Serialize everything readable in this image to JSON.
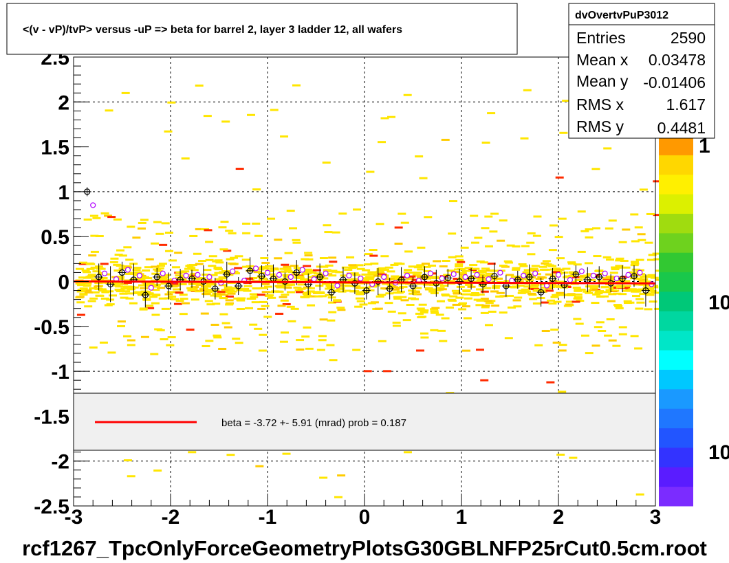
{
  "title": "<(v - vP)/tvP> versus  -uP => beta for barrel 2, layer 3 ladder 12, all wafers",
  "footer": "rcf1267_TpcOnlyForceGeometryPlotsG30GBLNFP25rCut0.5cm.root",
  "stats": {
    "name": "dvOvertvPuP3012",
    "rows": [
      {
        "label": "Entries",
        "value": "2590"
      },
      {
        "label": "Mean x",
        "value": "0.03478"
      },
      {
        "label": "Mean y",
        "value": "-0.01406"
      },
      {
        "label": "RMS x",
        "value": "1.617"
      },
      {
        "label": "RMS y",
        "value": "0.4481"
      }
    ]
  },
  "legend": {
    "text": "beta =   -3.72 +-  5.91 (mrad) prob = 0.187"
  },
  "colorbar": {
    "labels": [
      "1",
      "10",
      "10"
    ],
    "colors": [
      "#7b2cff",
      "#5a1cff",
      "#3333ff",
      "#2255ff",
      "#1f77ff",
      "#1a99ff",
      "#00c8ff",
      "#00ffff",
      "#00e6c8",
      "#00d7a0",
      "#00c878",
      "#19c84b",
      "#32c832",
      "#6ed21e",
      "#a0dc0f",
      "#dcf000",
      "#fff000",
      "#ffd700",
      "#ff9900"
    ]
  },
  "chart_data": {
    "type": "scatter",
    "title": "<(v - vP)/tvP> versus  -uP => beta for barrel 2, layer 3 ladder 12, all wafers",
    "xlabel": "",
    "ylabel": "",
    "xlim": [
      -3,
      3
    ],
    "ylim": [
      -2.5,
      2.5
    ],
    "xticks": [
      "-3",
      "-2",
      "-1",
      "0",
      "1",
      "2",
      "3"
    ],
    "yticks": [
      "-2.5",
      "-2",
      "-1.5",
      "-1",
      "-0.5",
      "0",
      "0.5",
      "1",
      "1.5",
      "2",
      "2.5"
    ],
    "grid": true,
    "fit": {
      "name": "beta",
      "beta_mrad": -3.72,
      "error_mrad": 5.91,
      "prob": 0.187,
      "y_at_x0": -0.01
    },
    "series": [
      {
        "name": "profile",
        "x": [
          -2.86,
          -2.74,
          -2.62,
          -2.5,
          -2.38,
          -2.26,
          -2.14,
          -2.02,
          -1.9,
          -1.78,
          -1.66,
          -1.54,
          -1.42,
          -1.3,
          -1.18,
          -1.06,
          -0.94,
          -0.82,
          -0.7,
          -0.58,
          -0.46,
          -0.34,
          -0.22,
          -0.1,
          0.02,
          0.14,
          0.26,
          0.38,
          0.5,
          0.62,
          0.74,
          0.86,
          0.98,
          1.1,
          1.22,
          1.34,
          1.46,
          1.58,
          1.7,
          1.82,
          1.94,
          2.06,
          2.18,
          2.3,
          2.42,
          2.54,
          2.66,
          2.78,
          2.9
        ],
        "y": [
          1.0,
          0.05,
          -0.03,
          0.1,
          0.02,
          -0.15,
          0.05,
          -0.05,
          0.02,
          0.03,
          0.0,
          -0.08,
          0.08,
          -0.05,
          0.12,
          0.06,
          0.03,
          0.0,
          0.1,
          -0.03,
          0.05,
          -0.12,
          0.02,
          -0.02,
          -0.1,
          0.0,
          -0.08,
          0.02,
          -0.05,
          0.05,
          -0.02,
          0.04,
          0.0,
          0.03,
          -0.03,
          0.06,
          -0.05,
          0.02,
          0.05,
          -0.12,
          0.03,
          -0.04,
          0.08,
          0.02,
          0.05,
          -0.02,
          0.03,
          0.06,
          -0.1
        ],
        "err": [
          0.05,
          0.15,
          0.2,
          0.12,
          0.18,
          0.14,
          0.1,
          0.15,
          0.12,
          0.1,
          0.18,
          0.12,
          0.14,
          0.1,
          0.15,
          0.12,
          0.16,
          0.1,
          0.14,
          0.12,
          0.15,
          0.1,
          0.14,
          0.12,
          0.1,
          0.15,
          0.12,
          0.14,
          0.1,
          0.12,
          0.15,
          0.1,
          0.14,
          0.12,
          0.1,
          0.15,
          0.12,
          0.1,
          0.14,
          0.16,
          0.12,
          0.15,
          0.1,
          0.14,
          0.12,
          0.1,
          0.15,
          0.12,
          0.18
        ]
      }
    ]
  }
}
